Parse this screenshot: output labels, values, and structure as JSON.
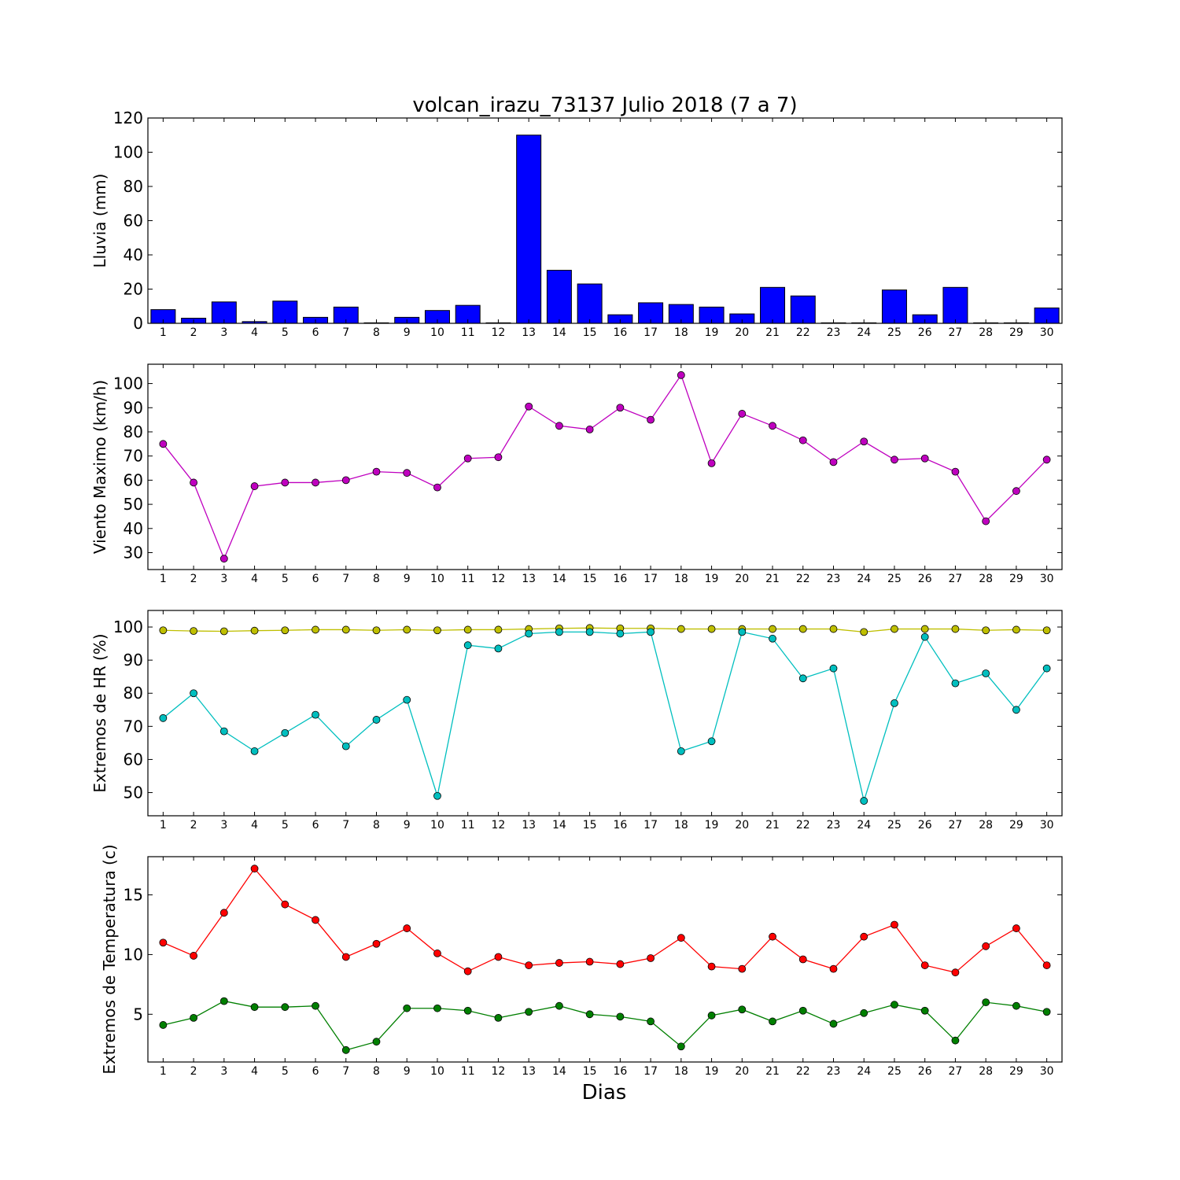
{
  "title": "volcan_irazu_73137 Julio 2018  (7 a 7)",
  "xlabel": "Dias",
  "chart_data": [
    {
      "type": "bar",
      "ylabel": "Lluvia (mm)",
      "ylim": [
        0,
        120
      ],
      "yticks": [
        0,
        20,
        40,
        60,
        80,
        100,
        120
      ],
      "categories": [
        1,
        2,
        3,
        4,
        5,
        6,
        7,
        8,
        9,
        10,
        11,
        12,
        13,
        14,
        15,
        16,
        17,
        18,
        19,
        20,
        21,
        22,
        23,
        24,
        25,
        26,
        27,
        28,
        29,
        30
      ],
      "series": [
        {
          "color": "#0000ff",
          "values": [
            8,
            3,
            12.5,
            1,
            13,
            3.5,
            9.5,
            0.3,
            3.5,
            7.5,
            10.5,
            0.3,
            110,
            31,
            23,
            5,
            12,
            11,
            9.5,
            5.5,
            21,
            16,
            0.3,
            0.3,
            19.5,
            5,
            21,
            0.3,
            0.3,
            9
          ]
        }
      ]
    },
    {
      "type": "line",
      "ylabel": "Viento Maximo (km/h)",
      "ylim": [
        23,
        108
      ],
      "yticks": [
        30,
        40,
        50,
        60,
        70,
        80,
        90,
        100
      ],
      "categories": [
        1,
        2,
        3,
        4,
        5,
        6,
        7,
        8,
        9,
        10,
        11,
        12,
        13,
        14,
        15,
        16,
        17,
        18,
        19,
        20,
        21,
        22,
        23,
        24,
        25,
        26,
        27,
        28,
        29,
        30
      ],
      "series": [
        {
          "color": "#bf00bf",
          "values": [
            75,
            59,
            27.5,
            57.5,
            59,
            59,
            60,
            63.5,
            63,
            57,
            69,
            69.5,
            90.5,
            82.5,
            81,
            90,
            85,
            103.5,
            67,
            87.5,
            82.5,
            76.5,
            67.5,
            76,
            68.5,
            69,
            63.5,
            43,
            55.5,
            68.5
          ]
        }
      ]
    },
    {
      "type": "line",
      "ylabel": "Extremos de HR (%)",
      "ylim": [
        43,
        105
      ],
      "yticks": [
        50,
        60,
        70,
        80,
        90,
        100
      ],
      "categories": [
        1,
        2,
        3,
        4,
        5,
        6,
        7,
        8,
        9,
        10,
        11,
        12,
        13,
        14,
        15,
        16,
        17,
        18,
        19,
        20,
        21,
        22,
        23,
        24,
        25,
        26,
        27,
        28,
        29,
        30
      ],
      "series": [
        {
          "color": "#bfbf00",
          "values": [
            99,
            98.8,
            98.7,
            98.9,
            99,
            99.2,
            99.2,
            99,
            99.2,
            99,
            99.2,
            99.2,
            99.4,
            99.6,
            99.7,
            99.6,
            99.6,
            99.4,
            99.4,
            99.4,
            99.4,
            99.4,
            99.4,
            98.5,
            99.4,
            99.4,
            99.4,
            99,
            99.2,
            99
          ]
        },
        {
          "color": "#00bfbf",
          "values": [
            72.5,
            80,
            68.5,
            62.5,
            68,
            73.5,
            64,
            72,
            78,
            49,
            94.5,
            93.5,
            98,
            98.5,
            98.5,
            98,
            98.5,
            62.5,
            65.5,
            98.5,
            96.5,
            84.5,
            87.5,
            47.5,
            77,
            97,
            83,
            86,
            75,
            87.5
          ]
        }
      ]
    },
    {
      "type": "line",
      "ylabel": "Extremos de Temperatura (c)",
      "ylim": [
        1,
        18.2
      ],
      "yticks": [
        5,
        10,
        15
      ],
      "categories": [
        1,
        2,
        3,
        4,
        5,
        6,
        7,
        8,
        9,
        10,
        11,
        12,
        13,
        14,
        15,
        16,
        17,
        18,
        19,
        20,
        21,
        22,
        23,
        24,
        25,
        26,
        27,
        28,
        29,
        30
      ],
      "series": [
        {
          "color": "#ff0000",
          "values": [
            11,
            9.9,
            13.5,
            17.2,
            14.2,
            12.9,
            9.8,
            10.9,
            12.2,
            10.1,
            8.6,
            9.8,
            9.1,
            9.3,
            9.4,
            9.2,
            9.7,
            11.4,
            9,
            8.8,
            11.5,
            9.6,
            8.8,
            11.5,
            12.5,
            9.1,
            8.5,
            10.7,
            12.2,
            9.1
          ]
        },
        {
          "color": "#007f00",
          "values": [
            4.1,
            4.7,
            6.1,
            5.6,
            5.6,
            5.7,
            2,
            2.7,
            5.5,
            5.5,
            5.3,
            4.7,
            5.2,
            5.7,
            5,
            4.8,
            4.4,
            2.3,
            4.9,
            5.4,
            4.4,
            5.3,
            4.2,
            5.1,
            5.8,
            5.3,
            2.8,
            6,
            5.7,
            5.2
          ]
        }
      ]
    }
  ]
}
